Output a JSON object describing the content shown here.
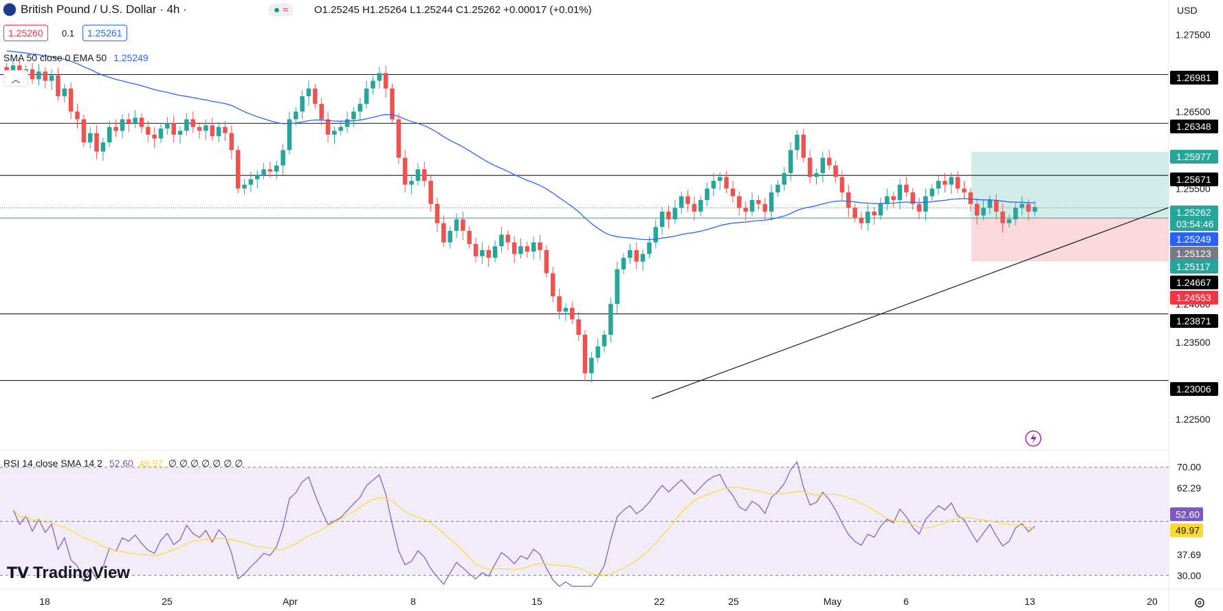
{
  "header": {
    "symbol_title": "British Pound / U.S. Dollar · 4h ·",
    "ohlc": "O1.25245  H1.25264  L1.25244  C1.25262  +0.00017 (+0.01%)",
    "bid_price": "1.25260",
    "spread": "0.1",
    "ask_price": "1.25261",
    "indicator_label": "SMA 50 close 0  EMA 50",
    "indicator_value": "1.25249",
    "currency": "USD",
    "collapse_icon": "chevron-up-icon",
    "flag_icon": "flag-icon",
    "status_icons": [
      "live-dot-icon",
      "wave-icon"
    ]
  },
  "rsi_header": {
    "label": "RSI 14 close SMA 14 2",
    "rsi_value": "52.60",
    "sma_value": "49.97",
    "extras": "∅ ∅ ∅ ∅ ∅ ∅ ∅"
  },
  "footer": {
    "logo": "TradingView",
    "settings_icon": "gear-icon"
  },
  "colors": {
    "up": "#26a69a",
    "down": "#ef5350",
    "ema": "#2962ff",
    "rsi": "#7e57c2",
    "rsi_sma": "#fdd835",
    "rsi_band": "#ede7f6",
    "tp_zone": "#b2dfdb",
    "sl_zone": "#f8c8cc"
  },
  "chart_data": [
    {
      "type": "candlestick",
      "title": "British Pound / U.S. Dollar · 4h",
      "ylim": [
        1.221,
        1.2795
      ],
      "y_ticks": [
        "1.27500",
        "1.26500",
        "1.25500",
        "1.24000",
        "1.23500",
        "1.22500"
      ],
      "x_ticks": [
        "18",
        "25",
        "Apr",
        "8",
        "15",
        "22",
        "25",
        "May",
        "6",
        "13",
        "20"
      ],
      "horizontal_levels": [
        "1.26981",
        "1.26348",
        "1.25671",
        "1.23871",
        "1.23006"
      ],
      "ema_level": "1.25249",
      "position": {
        "take_profit": "1.25977",
        "entry": "1.25117",
        "stop_loss": "1.24553"
      },
      "price_labels": [
        {
          "text": "1.26981",
          "color": "#000000"
        },
        {
          "text": "1.26348",
          "color": "#000000"
        },
        {
          "text": "1.25977",
          "color": "#26a69a"
        },
        {
          "text": "1.25671",
          "color": "#000000"
        },
        {
          "text": "1.25262",
          "color": "#26a69a"
        },
        {
          "text": "03:54:46",
          "color": "#26a69a"
        },
        {
          "text": "1.25249",
          "color": "#2962ff"
        },
        {
          "text": "1.25123",
          "color": "#787b86"
        },
        {
          "text": "1.25117",
          "color": "#26a69a"
        },
        {
          "text": "1.24667",
          "color": "#000000"
        },
        {
          "text": "1.24553",
          "color": "#f23645"
        },
        {
          "text": "1.23871",
          "color": "#000000"
        },
        {
          "text": "1.23006",
          "color": "#000000"
        }
      ],
      "candles_close": [
        1.27,
        1.271,
        1.2698,
        1.2705,
        1.2692,
        1.2702,
        1.269,
        1.2697,
        1.267,
        1.268,
        1.265,
        1.264,
        1.261,
        1.2622,
        1.2598,
        1.261,
        1.263,
        1.2625,
        1.264,
        1.2635,
        1.2642,
        1.263,
        1.262,
        1.2615,
        1.2628,
        1.2635,
        1.262,
        1.2625,
        1.264,
        1.263,
        1.2625,
        1.2632,
        1.2618,
        1.263,
        1.2622,
        1.26,
        1.255,
        1.2555,
        1.2562,
        1.2568,
        1.2575,
        1.2572,
        1.258,
        1.26,
        1.264,
        1.265,
        1.267,
        1.268,
        1.266,
        1.264,
        1.262,
        1.2625,
        1.263,
        1.264,
        1.265,
        1.266,
        1.268,
        1.269,
        1.27,
        1.268,
        1.264,
        1.259,
        1.2555,
        1.256,
        1.2575,
        1.256,
        1.253,
        1.2505,
        1.248,
        1.2495,
        1.251,
        1.2495,
        1.2478,
        1.2462,
        1.247,
        1.246,
        1.2475,
        1.249,
        1.248,
        1.2465,
        1.2475,
        1.2468,
        1.248,
        1.247,
        1.244,
        1.241,
        1.239,
        1.2395,
        1.238,
        1.236,
        1.231,
        1.233,
        1.2345,
        1.236,
        1.24,
        1.2445,
        1.246,
        1.247,
        1.2455,
        1.2465,
        1.248,
        1.25,
        1.252,
        1.251,
        1.2525,
        1.254,
        1.253,
        1.252,
        1.2535,
        1.255,
        1.256,
        1.2565,
        1.255,
        1.254,
        1.2525,
        1.252,
        1.2535,
        1.253,
        1.252,
        1.2545,
        1.2555,
        1.257,
        1.26,
        1.262,
        1.259,
        1.2565,
        1.257,
        1.259,
        1.258,
        1.2565,
        1.2545,
        1.2525,
        1.2512,
        1.2505,
        1.252,
        1.2515,
        1.253,
        1.254,
        1.2535,
        1.2555,
        1.2545,
        1.253,
        1.252,
        1.254,
        1.255,
        1.256,
        1.2555,
        1.2565,
        1.255,
        1.2545,
        1.253,
        1.2515,
        1.2525,
        1.2535,
        1.252,
        1.2505,
        1.251,
        1.2525,
        1.253,
        1.252,
        1.2526
      ],
      "rsi": {
        "ylim": [
          25,
          75
        ],
        "band": [
          30,
          70
        ],
        "mid": 50,
        "y_ticks": [
          "70.00",
          "62.29",
          "37.69",
          "30.00"
        ],
        "current": 52.6,
        "sma": 49.97
      }
    }
  ]
}
